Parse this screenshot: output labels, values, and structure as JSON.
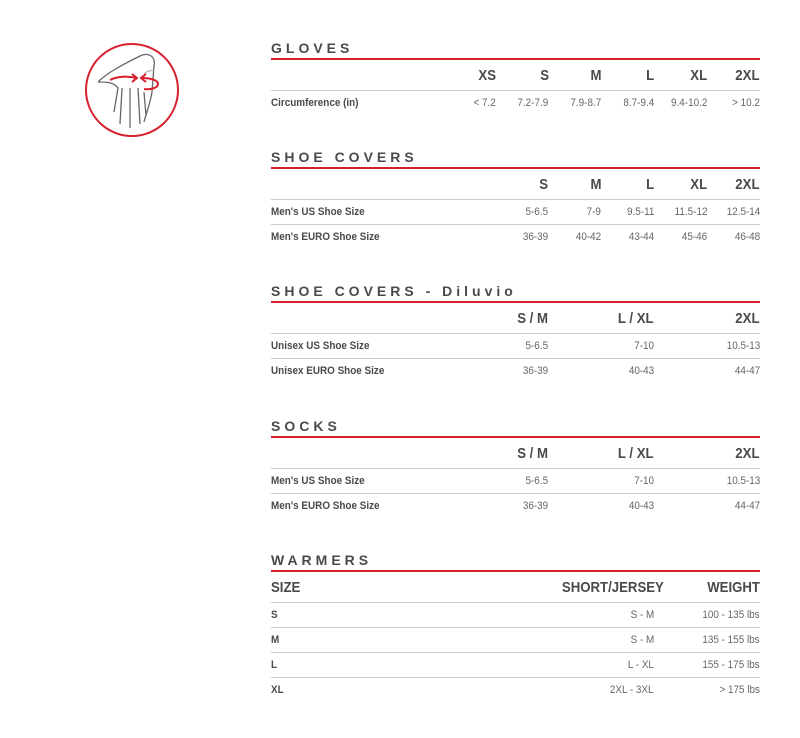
{
  "icon": "hand-circumference-icon",
  "accent_color": "#d7202e",
  "sections": [
    {
      "title": "GLOVES",
      "label_header": "",
      "columns": [
        "XS",
        "S",
        "M",
        "L",
        "XL",
        "2XL"
      ],
      "rows": [
        {
          "label": "Circumference (in)",
          "values": [
            "< 7.2",
            "7.2-7.9",
            "7.9-8.7",
            "8.7-9.4",
            "9.4-10.2",
            "> 10.2"
          ]
        }
      ]
    },
    {
      "title": "SHOE COVERS",
      "label_header": "",
      "columns": [
        "S",
        "M",
        "L",
        "XL",
        "2XL"
      ],
      "rows": [
        {
          "label": "Men's US Shoe Size",
          "values": [
            "5-6.5",
            "7-9",
            "9.5-11",
            "11.5-12",
            "12.5-14"
          ]
        },
        {
          "label": "Men's EURO Shoe Size",
          "values": [
            "36-39",
            "40-42",
            "43-44",
            "45-46",
            "46-48"
          ]
        }
      ]
    },
    {
      "title": "SHOE COVERS - Diluvio",
      "label_header": "",
      "columns": [
        "S / M",
        "L / XL",
        "2XL"
      ],
      "rows": [
        {
          "label": "Unisex US Shoe Size",
          "values": [
            "5-6.5",
            "7-10",
            "10.5-13"
          ]
        },
        {
          "label": "Unisex EURO Shoe Size",
          "values": [
            "36-39",
            "40-43",
            "44-47"
          ]
        }
      ]
    },
    {
      "title": "SOCKS",
      "label_header": "",
      "columns": [
        "S / M",
        "L / XL",
        "2XL"
      ],
      "rows": [
        {
          "label": "Men's US Shoe Size",
          "values": [
            "5-6.5",
            "7-10",
            "10.5-13"
          ]
        },
        {
          "label": "Men's EURO Shoe Size",
          "values": [
            "36-39",
            "40-43",
            "44-47"
          ]
        }
      ]
    },
    {
      "title": "WARMERS",
      "label_header": "SIZE",
      "columns": [
        "SHORT/JERSEY",
        "WEIGHT"
      ],
      "rows": [
        {
          "label": "S",
          "values": [
            "S - M",
            "100 - 135 lbs"
          ]
        },
        {
          "label": "M",
          "values": [
            "S - M",
            "135 - 155 lbs"
          ]
        },
        {
          "label": "L",
          "values": [
            "L - XL",
            "155 - 175 lbs"
          ]
        },
        {
          "label": "XL",
          "values": [
            "2XL - 3XL",
            "> 175 lbs"
          ]
        }
      ]
    }
  ]
}
